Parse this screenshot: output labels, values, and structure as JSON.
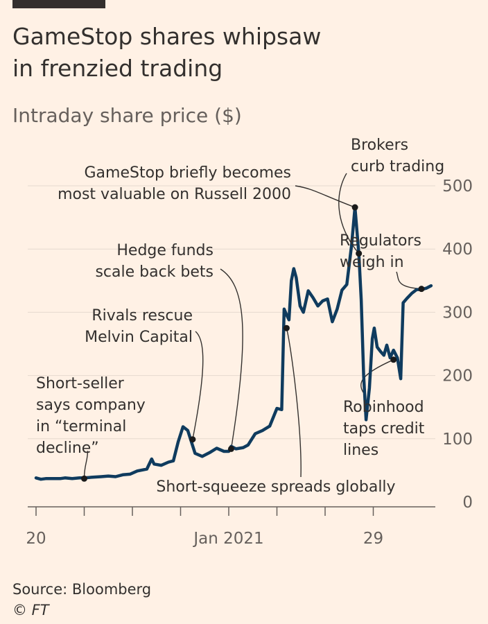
{
  "header": {
    "title_line1": "GameStop shares whipsaw",
    "title_line2": "in frenzied trading",
    "subtitle": "Intraday share price ($)"
  },
  "footer": {
    "source": "Source: Bloomberg",
    "credit": "© FT"
  },
  "colors": {
    "background": "#FFF1E5",
    "line": "#0F3B5E",
    "text": "#33302E",
    "grid": "#E6D9CE"
  },
  "chart_data": {
    "type": "line",
    "title": "GameStop shares whipsaw in frenzied trading",
    "subtitle": "Intraday share price ($)",
    "xlabel": "",
    "ylabel": "",
    "ylim": [
      0,
      500
    ],
    "y_ticks": [
      0,
      100,
      200,
      300,
      400,
      500
    ],
    "x_tick_labels": [
      {
        "x": 0,
        "label": "20"
      },
      {
        "x": 1,
        "label": ""
      },
      {
        "x": 2,
        "label": ""
      },
      {
        "x": 3,
        "label": ""
      },
      {
        "x": 4,
        "label": "Jan 2021"
      },
      {
        "x": 5,
        "label": ""
      },
      {
        "x": 6,
        "label": ""
      },
      {
        "x": 7,
        "label": "29"
      }
    ],
    "grid": "horizontal",
    "series": [
      {
        "values": [
          [
            0.0,
            38
          ],
          [
            0.1,
            36
          ],
          [
            0.2,
            37
          ],
          [
            0.35,
            37
          ],
          [
            0.5,
            37
          ],
          [
            0.6,
            38
          ],
          [
            0.75,
            37
          ],
          [
            0.9,
            38
          ],
          [
            1.0,
            38
          ],
          [
            1.15,
            39
          ],
          [
            1.35,
            40
          ],
          [
            1.5,
            41
          ],
          [
            1.65,
            40
          ],
          [
            1.8,
            43
          ],
          [
            1.95,
            44
          ],
          [
            2.1,
            49
          ],
          [
            2.3,
            52
          ],
          [
            2.4,
            68
          ],
          [
            2.45,
            60
          ],
          [
            2.6,
            58
          ],
          [
            2.75,
            63
          ],
          [
            2.85,
            65
          ],
          [
            2.95,
            95
          ],
          [
            3.05,
            119
          ],
          [
            3.15,
            113
          ],
          [
            3.3,
            77
          ],
          [
            3.45,
            72
          ],
          [
            3.6,
            78
          ],
          [
            3.75,
            85
          ],
          [
            3.9,
            80
          ],
          [
            4.0,
            80
          ],
          [
            4.05,
            88
          ],
          [
            4.15,
            84
          ],
          [
            4.3,
            86
          ],
          [
            4.4,
            90
          ],
          [
            4.55,
            108
          ],
          [
            4.7,
            113
          ],
          [
            4.85,
            120
          ],
          [
            5.0,
            148
          ],
          [
            5.1,
            146
          ],
          [
            5.15,
            305
          ],
          [
            5.2,
            296
          ],
          [
            5.25,
            288
          ],
          [
            5.3,
            350
          ],
          [
            5.35,
            369
          ],
          [
            5.4,
            355
          ],
          [
            5.48,
            310
          ],
          [
            5.55,
            300
          ],
          [
            5.65,
            334
          ],
          [
            5.75,
            323
          ],
          [
            5.85,
            310
          ],
          [
            5.95,
            318
          ],
          [
            6.05,
            321
          ],
          [
            6.15,
            285
          ],
          [
            6.25,
            305
          ],
          [
            6.35,
            335
          ],
          [
            6.45,
            344
          ],
          [
            6.55,
            406
          ],
          [
            6.62,
            466
          ],
          [
            6.7,
            392
          ],
          [
            6.75,
            320
          ],
          [
            6.8,
            200
          ],
          [
            6.85,
            130
          ],
          [
            6.92,
            180
          ],
          [
            6.98,
            258
          ],
          [
            7.02,
            275
          ],
          [
            7.08,
            245
          ],
          [
            7.15,
            238
          ],
          [
            7.22,
            232
          ],
          [
            7.28,
            248
          ],
          [
            7.35,
            228
          ],
          [
            7.42,
            240
          ],
          [
            7.5,
            228
          ],
          [
            7.57,
            195
          ],
          [
            7.62,
            315
          ],
          [
            7.7,
            322
          ],
          [
            7.8,
            330
          ],
          [
            7.9,
            336
          ],
          [
            8.0,
            336
          ],
          [
            8.1,
            338
          ],
          [
            8.2,
            342
          ]
        ]
      }
    ],
    "annotations": [
      {
        "text_lines": [
          "Short-seller",
          "says company",
          "in “terminal",
          "decline”"
        ],
        "x": 1.0,
        "y": 37
      },
      {
        "text_lines": [
          "Rivals rescue",
          "Melvin Capital"
        ],
        "x": 3.25,
        "y": 99
      },
      {
        "text_lines": [
          "Hedge funds",
          "scale back bets"
        ],
        "x": 4.05,
        "y": 84
      },
      {
        "text_lines": [
          "Short-squeeze spreads globally"
        ],
        "x": 5.2,
        "y": 275
      },
      {
        "text_lines": [
          "GameStop briefly becomes",
          "most valuable on Russell 2000"
        ],
        "x": 6.62,
        "y": 466
      },
      {
        "text_lines": [
          "Brokers",
          "curb trading"
        ],
        "x": 6.7,
        "y": 393
      },
      {
        "text_lines": [
          "Regulators",
          "weigh in"
        ],
        "x": 8.0,
        "y": 337
      },
      {
        "text_lines": [
          "Robinhood",
          "taps credit",
          "lines"
        ],
        "x": 7.42,
        "y": 225
      }
    ]
  }
}
